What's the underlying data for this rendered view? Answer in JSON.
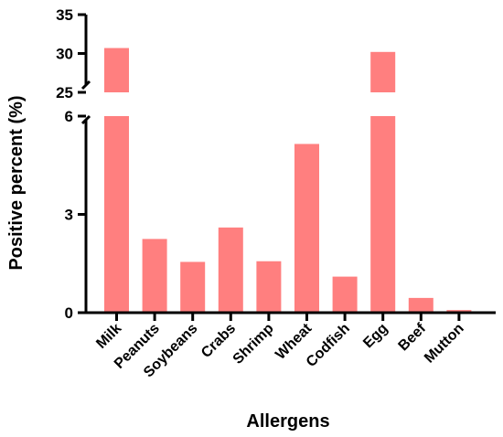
{
  "chart_data": {
    "type": "bar",
    "xlabel": "Allergens",
    "ylabel": "Positive percent (%)",
    "categories": [
      "Milk",
      "Peanuts",
      "Soybeans",
      "Crabs",
      "Shrimp",
      "Wheat",
      "Codfish",
      "Egg",
      "Beef",
      "Mutton"
    ],
    "values": [
      30.7,
      2.25,
      1.55,
      2.6,
      1.57,
      5.15,
      1.1,
      30.2,
      0.45,
      0.08
    ],
    "bar_color": "#FF7F7F",
    "y_axis_broken": true,
    "lower_segment": {
      "ylim": [
        0,
        6
      ],
      "ticks": [
        "0",
        "3",
        "6"
      ],
      "tick_values": [
        0,
        3,
        6
      ]
    },
    "upper_segment": {
      "ylim": [
        25,
        35
      ],
      "ticks": [
        "25",
        "30",
        "35"
      ],
      "tick_values": [
        25,
        30,
        35
      ]
    },
    "grid": false,
    "legend": "none"
  }
}
